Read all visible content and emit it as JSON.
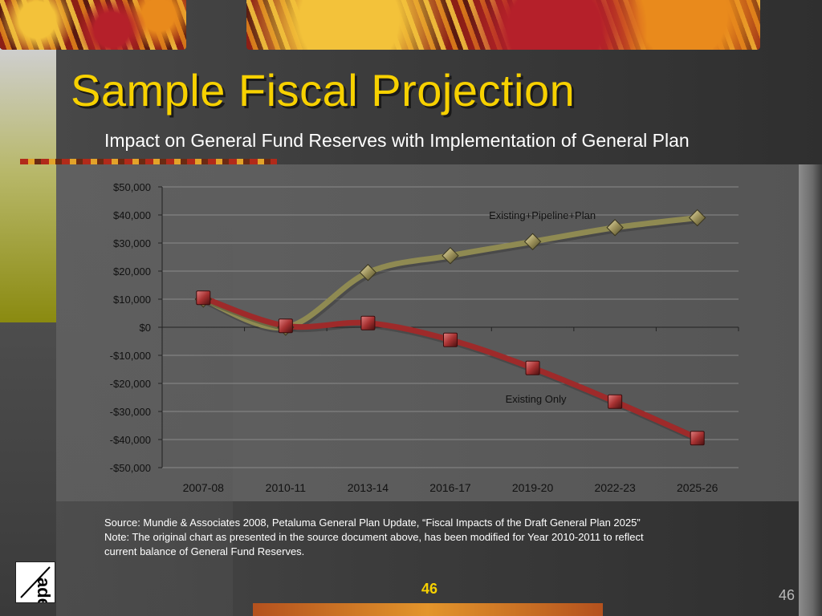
{
  "slide": {
    "title": "Sample Fiscal Projection",
    "subtitle": "Impact on General Fund Reserves with Implementation of General Plan",
    "source_line1": "Source: Mundie & Associates 2008, Petaluma General Plan Update, “Fiscal Impacts of the Draft General Plan 2025”",
    "source_line2": "Note: The original chart as presented in the source document above, has been modified for Year 2010-2011 to reflect",
    "source_line3": "current balance of General Fund Reserves.",
    "page_number_center": "46",
    "page_number_right": "46",
    "logo_letters": "ade"
  },
  "colors": {
    "title": "#f7d100",
    "series_plan": "#8f8a52",
    "series_existing": "#9e2a2a",
    "grid": "#8a8a8a"
  },
  "chart_data": {
    "type": "line",
    "title": "",
    "xlabel": "",
    "ylabel": "",
    "categories": [
      "2007-08",
      "2010-11",
      "2013-14",
      "2016-17",
      "2019-20",
      "2022-23",
      "2025-26"
    ],
    "ylim": [
      -50000,
      50000
    ],
    "yticks": [
      50000,
      40000,
      30000,
      20000,
      10000,
      0,
      -10000,
      -20000,
      -30000,
      -40000,
      -50000
    ],
    "ytick_labels": [
      "$50,000",
      "$40,000",
      "$30,000",
      "$20,000",
      "$10,000",
      "$0",
      "-$10,000",
      "-$20,000",
      "-$30,000",
      "-$40,000",
      "-$50,000"
    ],
    "grid": true,
    "series": [
      {
        "name": "Existing+Pipeline+Plan",
        "marker": "diamond",
        "values": [
          10000,
          0,
          19500,
          25500,
          30500,
          35500,
          39000
        ]
      },
      {
        "name": "Existing Only",
        "marker": "square",
        "values": [
          10500,
          500,
          1500,
          -4500,
          -14500,
          -26500,
          -39500
        ]
      }
    ]
  }
}
